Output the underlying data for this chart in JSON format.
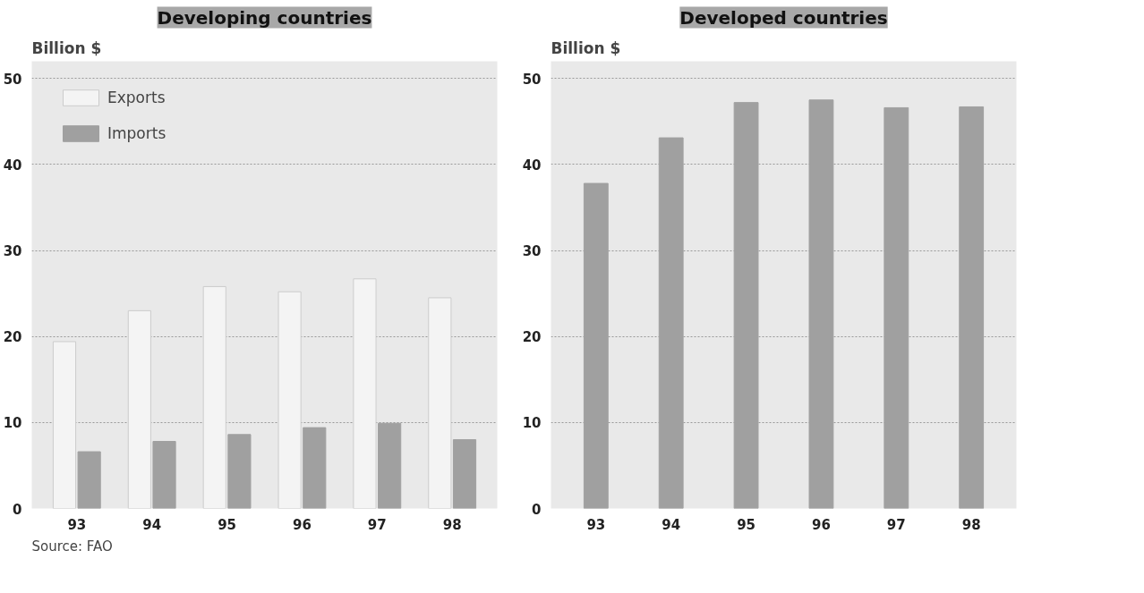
{
  "chart_data": [
    {
      "type": "bar",
      "title": "Developing countries",
      "ylabel": "Billion $",
      "categories": [
        "93",
        "94",
        "95",
        "96",
        "97",
        "98"
      ],
      "series": [
        {
          "name": "Exports",
          "color": "#f4f4f4",
          "values": [
            19.4,
            23.0,
            25.8,
            25.2,
            26.7,
            24.5
          ]
        },
        {
          "name": "Imports",
          "color": "#a0a0a0",
          "values": [
            6.6,
            7.8,
            8.6,
            9.4,
            9.9,
            8.0
          ]
        }
      ],
      "ylim": [
        0,
        52
      ],
      "yticks": [
        0,
        10,
        20,
        30,
        40,
        50
      ],
      "grid": "y",
      "legend": "top left",
      "annotations": [
        "Source: FAO"
      ]
    },
    {
      "type": "bar",
      "title": "Developed countries",
      "ylabel": "Billion $",
      "categories": [
        "93",
        "94",
        "95",
        "96",
        "97",
        "98"
      ],
      "series": [
        {
          "color": "#a0a0a0",
          "values": [
            37.8,
            43.1,
            47.2,
            47.5,
            46.6,
            46.7
          ]
        }
      ],
      "ylim": [
        0,
        52
      ],
      "yticks": [
        0,
        10,
        20,
        30,
        40,
        50
      ],
      "grid": "y"
    }
  ]
}
